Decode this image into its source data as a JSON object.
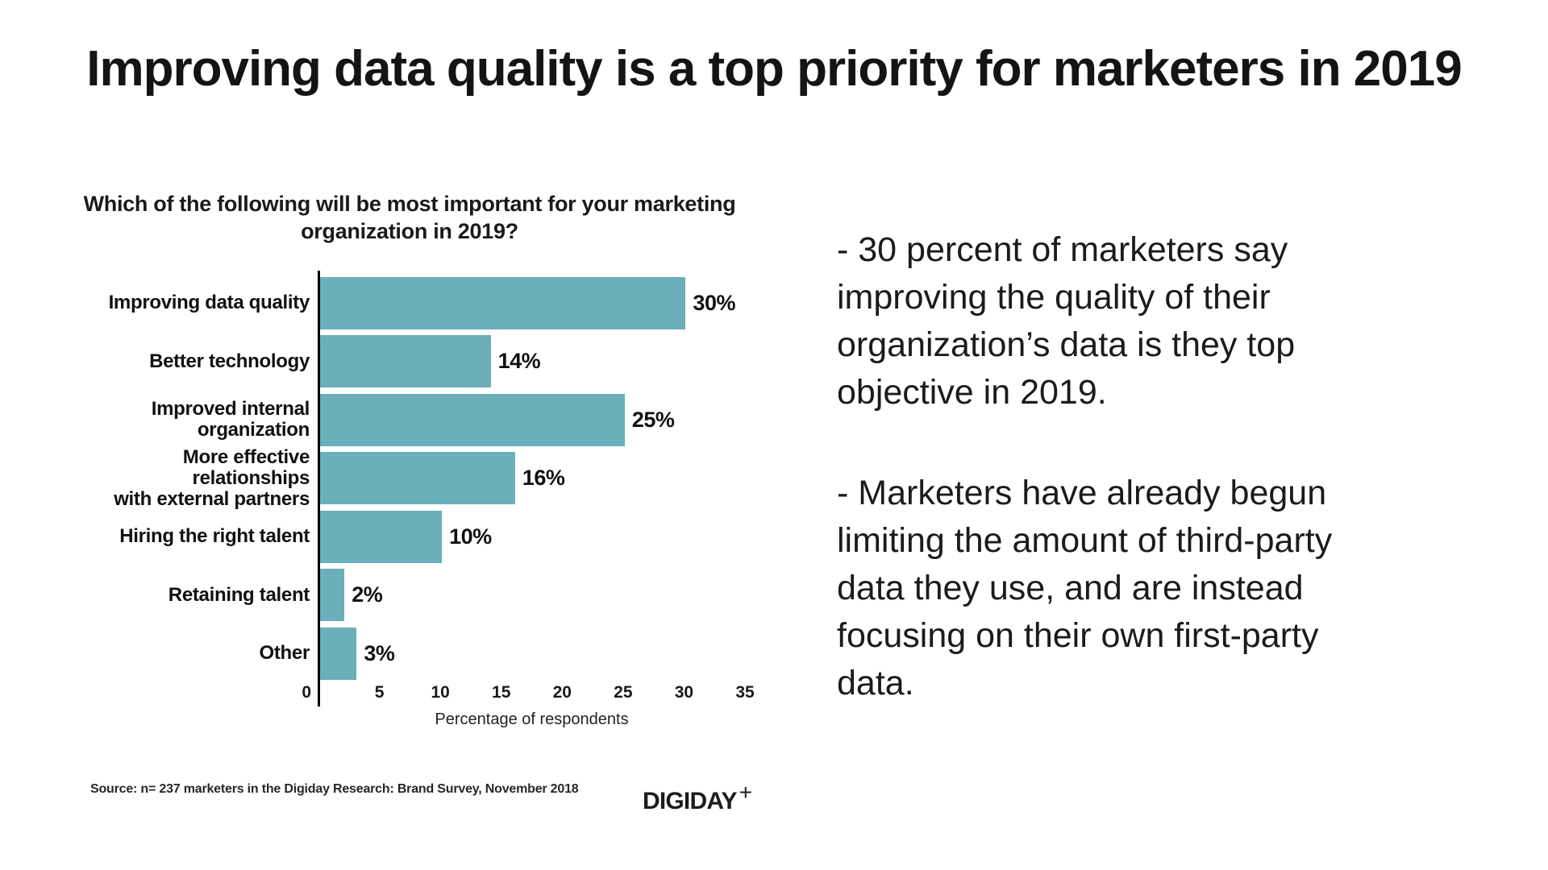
{
  "page_title": "Improving data quality is a top priority for marketers in 2019",
  "chart_data": {
    "type": "bar",
    "orientation": "horizontal",
    "title": "Which of the following will be most important for your marketing organization in 2019?",
    "title_lines": [
      "Which of the following will be most important for your marketing",
      "organization in 2019?"
    ],
    "categories": [
      "Improving data quality",
      "Better technology",
      "Improved internal organization",
      "More effective relationships with external partners",
      "Hiring the right talent",
      "Retaining talent",
      "Other"
    ],
    "label_lines": [
      [
        "Improving data quality"
      ],
      [
        "Better technology"
      ],
      [
        "Improved internal",
        "organization"
      ],
      [
        "More effective relationships",
        "with external partners"
      ],
      [
        "Hiring the right talent"
      ],
      [
        "Retaining talent"
      ],
      [
        "Other"
      ]
    ],
    "values": [
      30,
      14,
      25,
      16,
      10,
      2,
      3
    ],
    "value_labels": [
      "30%",
      "14%",
      "25%",
      "16%",
      "10%",
      "2%",
      "3%"
    ],
    "xlabel": "Percentage of respondents",
    "xlim": [
      0,
      35
    ],
    "xticks": [
      0,
      5,
      10,
      15,
      20,
      25,
      30,
      35
    ],
    "bar_color": "#6AAFBA",
    "grid": false,
    "legend": "none"
  },
  "source_note": "Source: n= 237 marketers in the Digiday Research: Brand Survey, November 2018",
  "logo": {
    "text": "DIGIDAY",
    "plus": "+"
  },
  "commentary": {
    "paragraph_1": [
      "- 30 percent of marketers say",
      "improving the quality of their",
      "organization’s data is they top",
      "objective in 2019."
    ],
    "paragraph_2": [
      "- Marketers have already begun",
      "limiting the amount of third-party",
      "data they use, and are instead",
      "focusing on their own first-party",
      "data."
    ]
  }
}
